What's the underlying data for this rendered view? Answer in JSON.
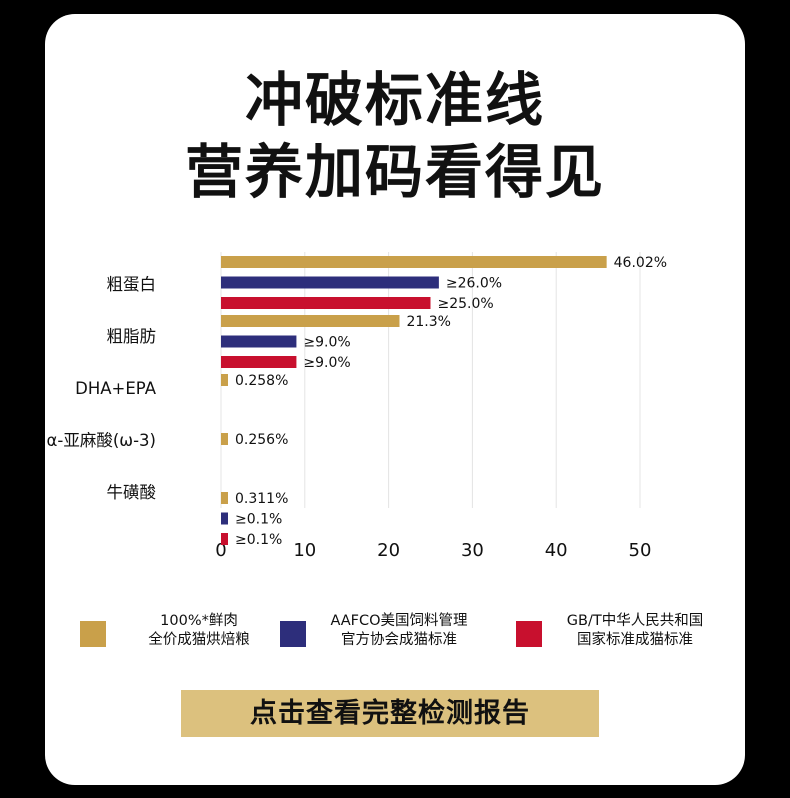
{
  "header": {
    "line1": "冲破标准线",
    "line2": "营养加码看得见"
  },
  "chart_data": {
    "type": "bar",
    "orientation": "horizontal",
    "xlim": [
      0,
      50
    ],
    "x_ticks": [
      "0",
      "10",
      "20",
      "30",
      "40",
      "50"
    ],
    "grid": "vertical",
    "categories": [
      "粗蛋白",
      "粗脂肪",
      "DHA+EPA",
      "α-亚麻酸(ω-3)",
      "牛磺酸"
    ],
    "series": [
      {
        "name": "100%*鲜肉 全价成猫烘焙粮",
        "color": "#c9a04a",
        "values": [
          46.02,
          21.3,
          0.258,
          0.256,
          0.311
        ],
        "labels": [
          "46.02%",
          "21.3%",
          "0.258%",
          "0.256%",
          "0.311%"
        ]
      },
      {
        "name": "AAFCO美国饲料管理 官方协会成猫标准",
        "color": "#2d2e7b",
        "values": [
          26.0,
          9.0,
          null,
          null,
          0.1
        ],
        "labels": [
          "≥26.0%",
          "≥9.0%",
          null,
          null,
          "≥0.1%"
        ]
      },
      {
        "name": "GB/T中华人民共和国 国家标准成猫标准",
        "color": "#c8102e",
        "values": [
          25.0,
          9.0,
          null,
          null,
          0.1
        ],
        "labels": [
          "≥25.0%",
          "≥9.0%",
          null,
          null,
          "≥0.1%"
        ]
      }
    ]
  },
  "legend": [
    {
      "line1": "100%*鲜肉",
      "line2": "全价成猫烘焙粮",
      "color": "#c9a04a"
    },
    {
      "line1": "AAFCO美国饲料管理",
      "line2": "官方协会成猫标准",
      "color": "#2d2e7b"
    },
    {
      "line1": "GB/T中华人民共和国",
      "line2": "国家标准成猫标准",
      "color": "#c8102e"
    }
  ],
  "cta": {
    "label": "点击查看完整检测报告"
  }
}
